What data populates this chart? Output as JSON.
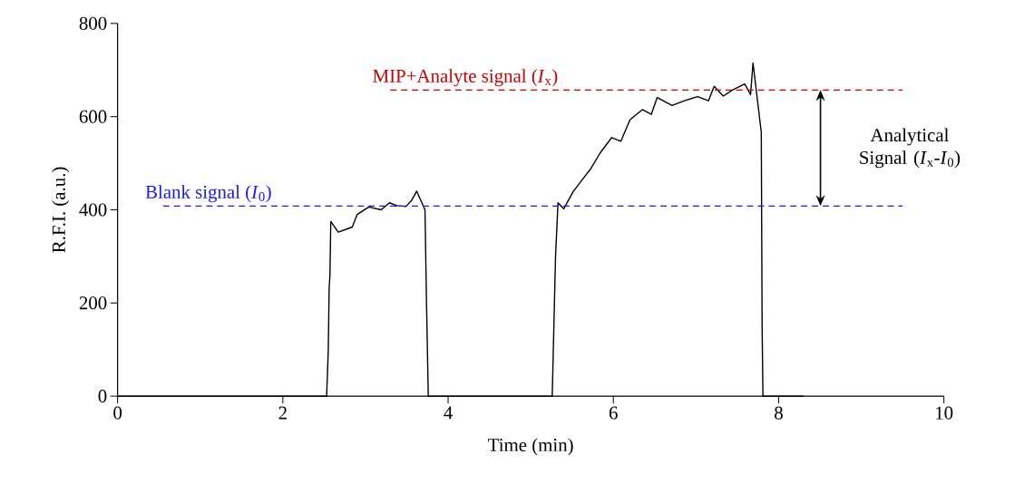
{
  "chart_data": {
    "type": "line",
    "xlabel": "Time (min)",
    "ylabel": "R.F.I. (a.u.)",
    "xlim": [
      0,
      10
    ],
    "ylim": [
      0,
      800
    ],
    "xticks": [
      0,
      2,
      4,
      6,
      8,
      10
    ],
    "yticks": [
      0,
      200,
      400,
      600,
      800
    ],
    "marker": "none",
    "line_style": "solid",
    "series": [
      {
        "color": "#000000",
        "x": [
          0,
          2.53,
          2.55,
          2.56,
          2.57,
          2.58,
          2.67,
          2.84,
          2.9,
          3.04,
          3.19,
          3.29,
          3.38,
          3.49,
          3.56,
          3.62,
          3.72,
          3.74,
          3.76,
          5.26,
          5.28,
          5.3,
          5.33,
          5.4,
          5.51,
          5.62,
          5.73,
          5.84,
          5.98,
          6.09,
          6.2,
          6.35,
          6.46,
          6.53,
          6.71,
          6.86,
          7.02,
          7.15,
          7.22,
          7.33,
          7.44,
          7.59,
          7.66,
          7.69,
          7.79,
          7.8,
          7.81,
          8.3
        ],
        "values": [
          0,
          0,
          100,
          230,
          260,
          375,
          352,
          363,
          390,
          406,
          400,
          415,
          409,
          407,
          421,
          440,
          400,
          187,
          0,
          0,
          150,
          300,
          415,
          402,
          438,
          464,
          489,
          522,
          555,
          547,
          593,
          615,
          605,
          641,
          624,
          634,
          643,
          634,
          665,
          644,
          657,
          670,
          647,
          715,
          566,
          150,
          0,
          0
        ]
      }
    ],
    "ref_lines": [
      {
        "axis": "y",
        "value": 408,
        "label": "Blank signal (*I*$_{0}$)",
        "color": "#1a1aff",
        "line_style": "dashed"
      },
      {
        "axis": "y",
        "value": 657,
        "label": "MIP+Analyte signal (*I*$_{x}$)",
        "color": "#cc0000",
        "line_style": "dashed"
      }
    ],
    "annotations": [
      "Analytical Signal (*I*$_{x}$-*I*$_{0}$)"
    ]
  }
}
